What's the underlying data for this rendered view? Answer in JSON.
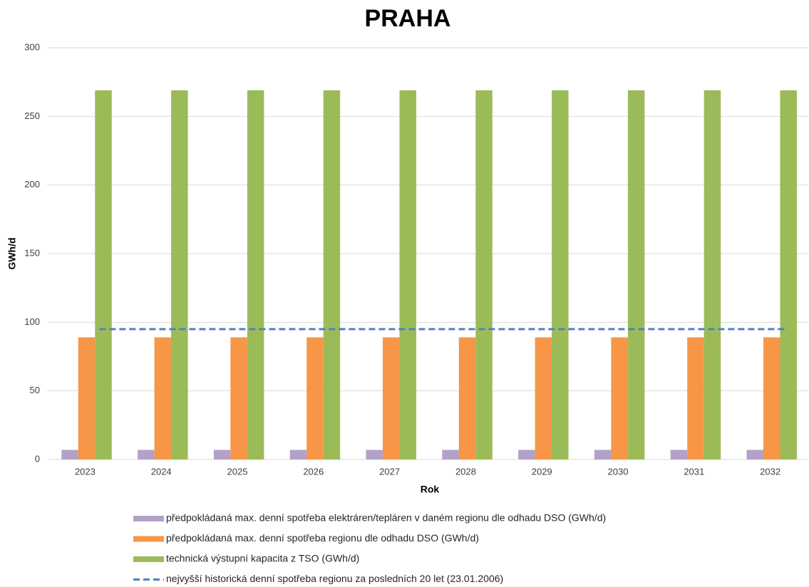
{
  "chart_data": {
    "type": "bar",
    "title": "PRAHA",
    "x_label": "Rok",
    "y_label": "GWh/d",
    "categories": [
      "2023",
      "2024",
      "2025",
      "2026",
      "2027",
      "2028",
      "2029",
      "2030",
      "2031",
      "2032"
    ],
    "series": [
      {
        "name": "předpokládaná max. denní spotřeba elektráren/tepláren v daném regionu dle odhadu DSO (GWh/d)",
        "color": "#b3a2c7",
        "values": [
          7,
          7,
          7,
          7,
          7,
          7,
          7,
          7,
          7,
          7
        ]
      },
      {
        "name": "předpokládaná max. denní spotřeba regionu dle odhadu DSO (GWh/d)",
        "color": "#f79646",
        "values": [
          89,
          89,
          89,
          89,
          89,
          89,
          89,
          89,
          89,
          89
        ]
      },
      {
        "name": "technická výstupní kapacita z TSO (GWh/d)",
        "color": "#9bbb59",
        "values": [
          269,
          269,
          269,
          269,
          269,
          269,
          269,
          269,
          269,
          269
        ]
      },
      {
        "name": "nejvyšší historická denní spotřeba regionu za posledních 20 let (23.01.2006)",
        "color": "#4f81bd",
        "type": "line",
        "dashed": true,
        "values": [
          95,
          95,
          95,
          95,
          95,
          95,
          95,
          95,
          95,
          95
        ]
      }
    ],
    "ylim": [
      0,
      300
    ],
    "yticks": [
      0,
      50,
      100,
      150,
      200,
      250,
      300
    ],
    "grid": true,
    "legend": "bottom"
  }
}
